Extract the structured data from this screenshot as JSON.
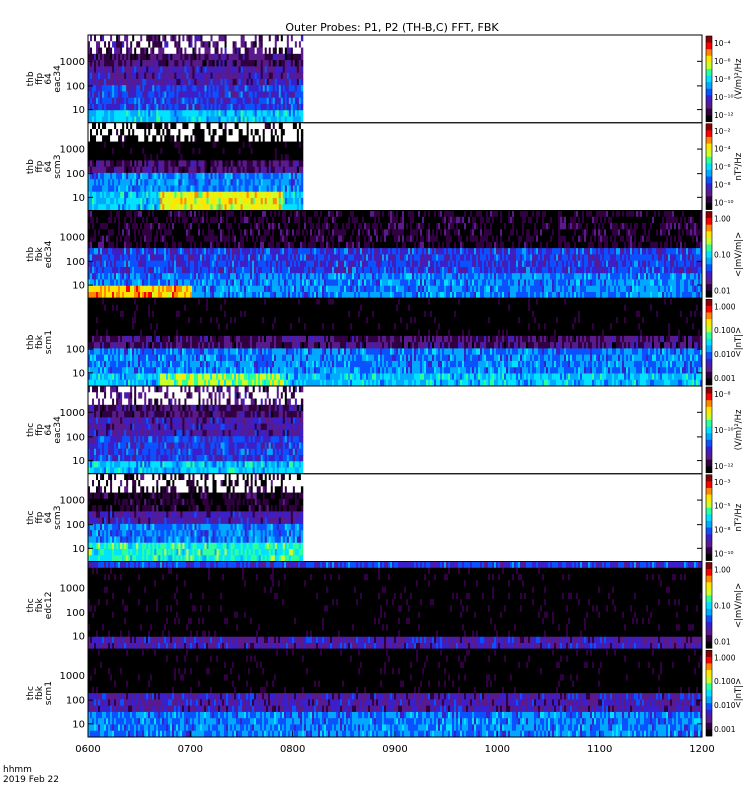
{
  "title": "Outer Probes: P1, P2 (TH-B,C) FFT, FBK",
  "footer": {
    "line1": "hhmm",
    "line2": "2019 Feb 22"
  },
  "colors": {
    "scale": [
      "#000000",
      "#300040",
      "#5a1a8c",
      "#3b1fc8",
      "#0a52ff",
      "#00a8ff",
      "#00e2ff",
      "#2dff9a",
      "#c8ff2a",
      "#ffe600",
      "#ff8800",
      "#ff0000",
      "#8b0000"
    ]
  },
  "x_axis": {
    "ticks": [
      {
        "label": "0600",
        "hour": 6
      },
      {
        "label": "0700",
        "hour": 7
      },
      {
        "label": "0800",
        "hour": 8
      },
      {
        "label": "0900",
        "hour": 9
      },
      {
        "label": "1000",
        "hour": 10
      },
      {
        "label": "1100",
        "hour": 11
      },
      {
        "label": "1200",
        "hour": 12
      }
    ],
    "range_hours": [
      6,
      12
    ]
  },
  "panels": [
    {
      "id": "thb-ffp-eac34",
      "label": [
        "thb",
        "ffp",
        "64",
        "eac34"
      ],
      "yticks": [
        "1000",
        "100",
        "10"
      ],
      "cb_ticks": [
        "10⁻⁴",
        "10⁻⁶",
        "10⁻⁸",
        "10⁻¹⁰",
        "10⁻¹²"
      ],
      "cb_label": "(V/m)²/Hz",
      "data_end_hour": 8.1,
      "style": "eff"
    },
    {
      "id": "thb-ffp-scm3",
      "label": [
        "thb",
        "ffp",
        "64",
        "scm3"
      ],
      "yticks": [
        "1000",
        "100",
        "10"
      ],
      "cb_ticks": [
        "10⁻²",
        "10⁻⁴",
        "10⁻⁶",
        "10⁻⁸",
        "10⁻¹⁰"
      ],
      "cb_label": "nT²/Hz",
      "data_end_hour": 8.1,
      "style": "scm"
    },
    {
      "id": "thb-fbk-edc34",
      "label": [
        "thb",
        "fbk",
        "edc34"
      ],
      "yticks": [
        "1000",
        "100",
        "10"
      ],
      "cb_ticks": [
        "1.00",
        "0.10",
        "0.01"
      ],
      "cb_label": "<|mV/m|>",
      "data_end_hour": 12,
      "style": "fbke"
    },
    {
      "id": "thb-fbk-scm1",
      "label": [
        "thb",
        "fbk",
        "scm1"
      ],
      "yticks": [
        "100",
        "10"
      ],
      "cb_ticks": [
        "1.000",
        "0.100",
        "0.010",
        "0.001"
      ],
      "cb_label": "<|nT|>",
      "data_end_hour": 12,
      "style": "fbkb"
    },
    {
      "id": "thc-ffp-eac34",
      "label": [
        "thc",
        "ffp",
        "64",
        "eac34"
      ],
      "yticks": [
        "1000",
        "100",
        "10"
      ],
      "cb_ticks": [
        "10⁻⁸",
        "10⁻¹⁰",
        "10⁻¹²"
      ],
      "cb_label": "(V/m)²/Hz",
      "data_end_hour": 8.1,
      "style": "eff"
    },
    {
      "id": "thc-ffp-scm3",
      "label": [
        "thc",
        "ffp",
        "64",
        "scm3"
      ],
      "yticks": [
        "1000",
        "100",
        "10"
      ],
      "cb_ticks": [
        "10⁻³",
        "10⁻⁵",
        "10⁻⁸",
        "10⁻¹⁰"
      ],
      "cb_label": "nT²/Hz",
      "data_end_hour": 8.1,
      "style": "scm2"
    },
    {
      "id": "thc-fbk-edc12",
      "label": [
        "thc",
        "fbk",
        "edc12"
      ],
      "yticks": [
        "1000",
        "100",
        "10"
      ],
      "cb_ticks": [
        "1.00",
        "0.10",
        "0.01"
      ],
      "cb_label": "<|mV/m|>",
      "data_end_hour": 12,
      "style": "fbke2"
    },
    {
      "id": "thc-fbk-scm1",
      "label": [
        "thc",
        "fbk",
        "scm1"
      ],
      "yticks": [
        "1000",
        "100",
        "10"
      ],
      "cb_ticks": [
        "1.000",
        "0.100",
        "0.010",
        "0.001"
      ],
      "cb_label": "<|nT|>",
      "data_end_hour": 12,
      "style": "fbkb2"
    }
  ],
  "chart_data": {
    "type": "heatmap",
    "title": "Outer Probes: P1, P2 (TH-B,C) FFT, FBK",
    "x": [
      "0600",
      "0700",
      "0800",
      "0900",
      "1000",
      "1100",
      "1200"
    ],
    "xlim": [
      6,
      12
    ],
    "y_scale": "log",
    "series": [
      {
        "name": "thb ffp 64 eac34",
        "units": "(V/m)²/Hz",
        "x_end": 8.1
      },
      {
        "name": "thb ffp 64 scm3",
        "units": "nT²/Hz",
        "x_end": 8.1
      },
      {
        "name": "thb fbk edc34",
        "units": "<|mV/m|>",
        "x_end": 12
      },
      {
        "name": "thb fbk scm1",
        "units": "<|nT|>",
        "x_end": 12
      },
      {
        "name": "thc ffp 64 eac34",
        "units": "(V/m)²/Hz",
        "x_end": 8.1
      },
      {
        "name": "thc ffp 64 scm3",
        "units": "nT²/Hz",
        "x_end": 8.1
      },
      {
        "name": "thc fbk edc12",
        "units": "<|mV/m|>",
        "x_end": 12
      },
      {
        "name": "thc fbk scm1",
        "units": "<|nT|>",
        "x_end": 12
      }
    ]
  }
}
